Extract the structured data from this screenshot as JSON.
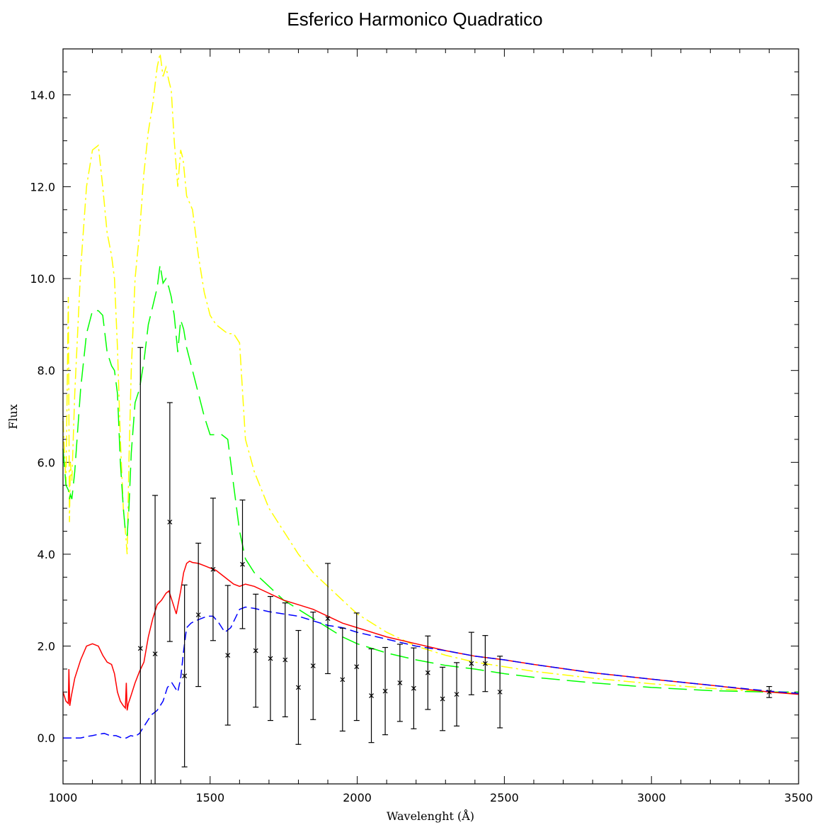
{
  "chart_data": {
    "type": "line",
    "title": "Esferico Harmonico Quadratico",
    "xlabel": "Wavelenght (Å)",
    "ylabel": "Flux",
    "xlim": [
      1000,
      3500
    ],
    "ylim": [
      -1.0,
      15.0
    ],
    "x_ticks": [
      1000,
      1500,
      2000,
      2500,
      3000,
      3500
    ],
    "x_tick_labels": [
      "1000",
      "1500",
      "2000",
      "2500",
      "3000",
      "3500"
    ],
    "y_ticks": [
      0,
      2,
      4,
      6,
      8,
      10,
      12,
      14
    ],
    "y_tick_labels": [
      "0.0",
      "2.0",
      "4.0",
      "6.0",
      "8.0",
      "10.0",
      "12.0",
      "14.0"
    ],
    "grid": false,
    "series": [
      {
        "color": "#ffff00",
        "style": "dash-dot",
        "x": [
          1000,
          1010,
          1018,
          1022,
          1025,
          1030,
          1040,
          1060,
          1080,
          1100,
          1120,
          1135,
          1150,
          1165,
          1175,
          1185,
          1195,
          1205,
          1212,
          1218,
          1224,
          1232,
          1245,
          1260,
          1275,
          1290,
          1305,
          1320,
          1330,
          1340,
          1350,
          1360,
          1368,
          1378,
          1390,
          1400,
          1408,
          1420,
          1440,
          1460,
          1480,
          1500,
          1520,
          1540,
          1560,
          1580,
          1600,
          1620,
          1650,
          1700,
          1750,
          1800,
          1850,
          1900,
          1950,
          2000,
          2100,
          2200,
          2300,
          2400,
          2500,
          2600,
          2800,
          3000,
          3200,
          3400,
          3500
        ],
        "y": [
          6.9,
          5.5,
          9.6,
          4.7,
          6.0,
          5.6,
          7.5,
          10.2,
          12.0,
          12.8,
          12.9,
          12.0,
          11.0,
          10.5,
          10.0,
          8.5,
          6.5,
          5.0,
          4.5,
          4.0,
          6.0,
          8.0,
          10.0,
          11.0,
          12.3,
          13.2,
          13.8,
          14.6,
          14.9,
          14.4,
          14.6,
          14.3,
          14.1,
          13.0,
          12.0,
          12.8,
          12.6,
          11.8,
          11.5,
          10.5,
          9.7,
          9.2,
          9.0,
          8.9,
          8.8,
          8.8,
          8.6,
          6.5,
          5.8,
          5.0,
          4.5,
          4.0,
          3.6,
          3.3,
          3.0,
          2.7,
          2.3,
          2.0,
          1.8,
          1.65,
          1.55,
          1.45,
          1.3,
          1.18,
          1.08,
          1.0,
          0.97
        ]
      },
      {
        "color": "#00ff00",
        "style": "long-dash",
        "x": [
          1000,
          1010,
          1018,
          1022,
          1025,
          1030,
          1040,
          1060,
          1080,
          1100,
          1120,
          1135,
          1150,
          1165,
          1175,
          1185,
          1195,
          1205,
          1212,
          1218,
          1224,
          1232,
          1245,
          1260,
          1275,
          1290,
          1305,
          1320,
          1330,
          1340,
          1350,
          1360,
          1368,
          1378,
          1390,
          1400,
          1410,
          1420,
          1440,
          1460,
          1480,
          1500,
          1520,
          1540,
          1560,
          1580,
          1600,
          1620,
          1650,
          1700,
          1750,
          1800,
          1850,
          1900,
          1950,
          2000,
          2100,
          2200,
          2300,
          2400,
          2500,
          2600,
          2800,
          3000,
          3200,
          3400,
          3500
        ],
        "y": [
          6.3,
          5.5,
          5.4,
          5.2,
          5.3,
          5.2,
          5.8,
          7.6,
          8.8,
          9.3,
          9.3,
          9.2,
          8.4,
          8.1,
          8.0,
          7.5,
          6.0,
          5.0,
          4.5,
          4.4,
          5.0,
          6.2,
          7.3,
          7.6,
          8.2,
          9.0,
          9.4,
          9.8,
          10.3,
          9.9,
          10.0,
          9.8,
          9.6,
          9.2,
          8.4,
          9.1,
          8.9,
          8.5,
          8.0,
          7.5,
          7.0,
          6.6,
          6.6,
          6.6,
          6.5,
          5.5,
          4.5,
          3.9,
          3.6,
          3.3,
          3.0,
          2.8,
          2.6,
          2.4,
          2.2,
          2.05,
          1.85,
          1.7,
          1.58,
          1.5,
          1.4,
          1.32,
          1.2,
          1.1,
          1.03,
          1.0,
          1.0
        ]
      },
      {
        "color": "#ff0000",
        "style": "solid",
        "x": [
          1000,
          1010,
          1018,
          1020,
          1023,
          1028,
          1040,
          1060,
          1080,
          1100,
          1120,
          1135,
          1150,
          1165,
          1175,
          1185,
          1195,
          1205,
          1212,
          1215,
          1218,
          1222,
          1230,
          1245,
          1260,
          1275,
          1290,
          1305,
          1320,
          1335,
          1350,
          1360,
          1370,
          1385,
          1400,
          1410,
          1420,
          1430,
          1440,
          1460,
          1480,
          1500,
          1520,
          1540,
          1560,
          1580,
          1600,
          1620,
          1650,
          1700,
          1750,
          1800,
          1850,
          1900,
          1950,
          2000,
          2100,
          2200,
          2300,
          2400,
          2500,
          2600,
          2800,
          3000,
          3200,
          3400,
          3500
        ],
        "y": [
          1.0,
          0.8,
          0.75,
          1.5,
          0.7,
          0.9,
          1.3,
          1.7,
          2.0,
          2.05,
          2.0,
          1.8,
          1.65,
          1.6,
          1.4,
          1.0,
          0.8,
          0.7,
          0.65,
          1.2,
          0.6,
          0.75,
          0.9,
          1.2,
          1.45,
          1.65,
          2.2,
          2.6,
          2.9,
          3.0,
          3.15,
          3.2,
          3.0,
          2.7,
          3.2,
          3.6,
          3.8,
          3.85,
          3.82,
          3.8,
          3.75,
          3.7,
          3.65,
          3.55,
          3.45,
          3.35,
          3.3,
          3.35,
          3.3,
          3.15,
          3.0,
          2.9,
          2.8,
          2.65,
          2.5,
          2.4,
          2.2,
          2.05,
          1.9,
          1.78,
          1.7,
          1.6,
          1.42,
          1.28,
          1.15,
          1.0,
          0.95
        ]
      },
      {
        "color": "#0000ff",
        "style": "dash",
        "x": [
          1000,
          1030,
          1060,
          1080,
          1100,
          1120,
          1140,
          1160,
          1180,
          1200,
          1215,
          1230,
          1245,
          1260,
          1280,
          1300,
          1320,
          1340,
          1355,
          1370,
          1390,
          1400,
          1410,
          1420,
          1435,
          1450,
          1470,
          1490,
          1510,
          1530,
          1550,
          1570,
          1600,
          1620,
          1650,
          1700,
          1750,
          1800,
          1850,
          1900,
          1950,
          2000,
          2100,
          2200,
          2300,
          2400,
          2500,
          2600,
          2800,
          3000,
          3200,
          3400,
          3500
        ],
        "y": [
          0.0,
          0.0,
          0.0,
          0.03,
          0.05,
          0.08,
          0.1,
          0.05,
          0.05,
          0.0,
          0.0,
          0.05,
          0.03,
          0.1,
          0.3,
          0.5,
          0.6,
          0.8,
          1.1,
          1.2,
          1.0,
          1.3,
          1.9,
          2.4,
          2.5,
          2.55,
          2.6,
          2.65,
          2.65,
          2.5,
          2.3,
          2.4,
          2.8,
          2.85,
          2.82,
          2.75,
          2.7,
          2.65,
          2.55,
          2.45,
          2.4,
          2.3,
          2.15,
          2.0,
          1.9,
          1.78,
          1.7,
          1.6,
          1.42,
          1.28,
          1.15,
          1.02,
          0.97
        ]
      }
    ],
    "error_points": {
      "color": "#000000",
      "marker": "x",
      "x": [
        1263,
        1313,
        1363,
        1413,
        1460,
        1510,
        1560,
        1610,
        1655,
        1705,
        1755,
        1800,
        1850,
        1900,
        1950,
        1998,
        2048,
        2095,
        2145,
        2192,
        2240,
        2290,
        2338,
        2388,
        2435,
        2485,
        3400
      ],
      "y": [
        1.95,
        1.83,
        4.7,
        1.35,
        2.68,
        3.67,
        1.8,
        3.78,
        1.9,
        1.73,
        1.7,
        1.1,
        1.57,
        2.6,
        1.27,
        1.55,
        0.92,
        1.02,
        1.2,
        1.08,
        1.42,
        0.85,
        0.95,
        1.62,
        1.62,
        1.0,
        1.0
      ],
      "err": [
        6.55,
        3.45,
        2.6,
        1.98,
        1.56,
        1.55,
        1.52,
        1.4,
        1.23,
        1.35,
        1.24,
        1.24,
        1.17,
        1.2,
        1.12,
        1.17,
        1.02,
        0.95,
        0.84,
        0.88,
        0.8,
        0.69,
        0.69,
        0.68,
        0.61,
        0.78,
        0.12
      ]
    }
  }
}
